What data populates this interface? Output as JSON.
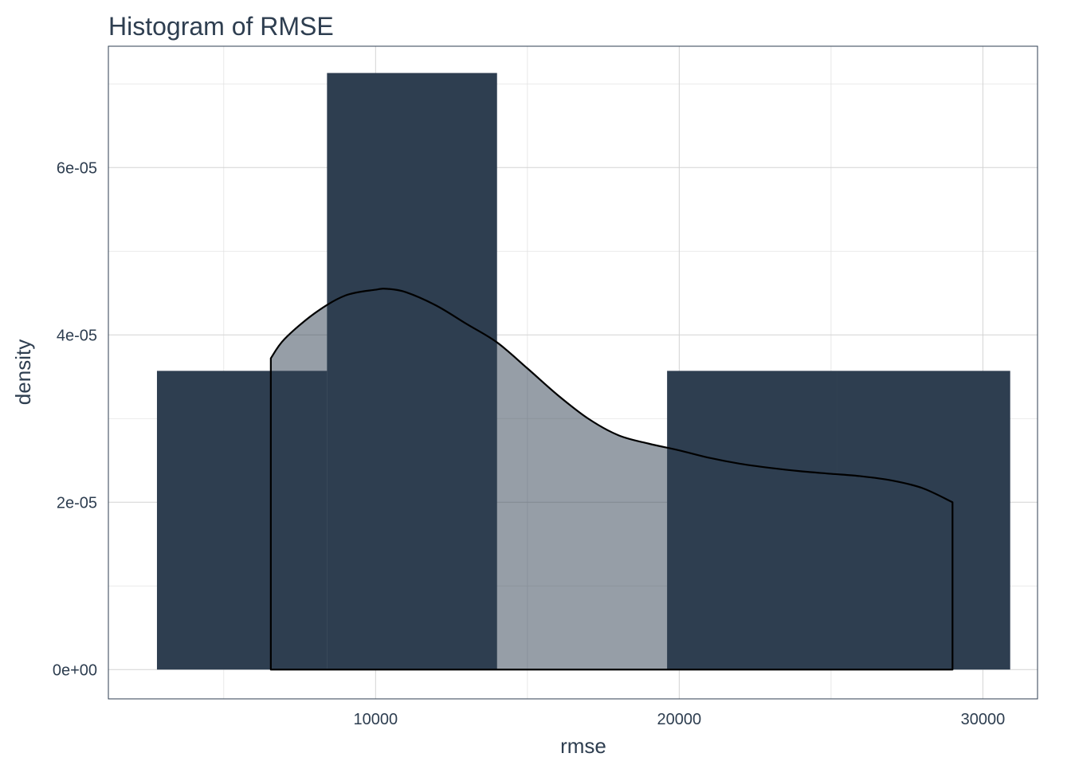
{
  "chart_data": {
    "type": "histogram",
    "title": "Histogram of RMSE",
    "xlabel": "rmse",
    "ylabel": "density",
    "xlim": [
      1200,
      31800
    ],
    "ylim": [
      -3.5e-06,
      7.45e-05
    ],
    "x_ticks": [
      10000,
      20000,
      30000
    ],
    "x_tick_labels": [
      "10000",
      "20000",
      "30000"
    ],
    "y_ticks": [
      0,
      2e-05,
      4e-05,
      6e-05
    ],
    "y_tick_labels": [
      "0e+00",
      "2e-05",
      "4e-05",
      "6e-05"
    ],
    "grid": true,
    "bins": [
      {
        "xmin": 2800,
        "xmax": 8400,
        "density": 3.57e-05
      },
      {
        "xmin": 8400,
        "xmax": 14000,
        "density": 7.13e-05
      },
      {
        "xmin": 14000,
        "xmax": 19600,
        "density": 0.0
      },
      {
        "xmin": 19600,
        "xmax": 25200,
        "density": 3.57e-05
      },
      {
        "xmin": 25200,
        "xmax": 30900,
        "density": 3.57e-05
      }
    ],
    "density_curve": {
      "x": [
        6550,
        7000,
        8000,
        9000,
        10000,
        10400,
        11000,
        12000,
        13000,
        14000,
        15000,
        16000,
        17000,
        18000,
        19000,
        20000,
        21000,
        22000,
        23000,
        24000,
        25000,
        26000,
        27000,
        28000,
        29000
      ],
      "y": [
        3.72e-05,
        3.95e-05,
        4.26e-05,
        4.47e-05,
        4.54e-05,
        4.55e-05,
        4.51e-05,
        4.35e-05,
        4.13e-05,
        3.91e-05,
        3.6e-05,
        3.28e-05,
        3e-05,
        2.8e-05,
        2.7e-05,
        2.62e-05,
        2.53e-05,
        2.46e-05,
        2.41e-05,
        2.37e-05,
        2.34e-05,
        2.31e-05,
        2.26e-05,
        2.17e-05,
        2e-05
      ]
    },
    "colors": {
      "bar_fill": "#2e3e50",
      "density_fill": "#2e3e50",
      "density_fill_opacity": 0.5,
      "density_line": "#000000",
      "text": "#2e3e50"
    }
  }
}
